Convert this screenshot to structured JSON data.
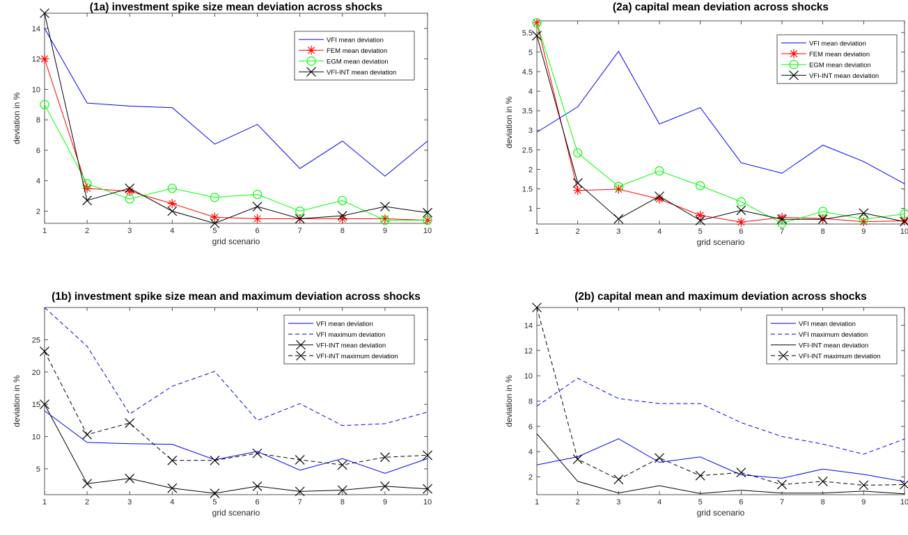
{
  "chart_data": [
    {
      "id": "1a",
      "type": "line",
      "title": "(1a) investment spike size mean deviation across shocks",
      "xlabel": "grid scenario",
      "ylabel": "deviation in %",
      "x": [
        1,
        2,
        3,
        4,
        5,
        6,
        7,
        8,
        9,
        10
      ],
      "xlim": [
        1,
        10
      ],
      "ylim": [
        1.2,
        15
      ],
      "yticks": [
        2,
        4,
        6,
        8,
        10,
        12,
        14
      ],
      "xticks": [
        1,
        2,
        3,
        4,
        5,
        6,
        7,
        8,
        9,
        10
      ],
      "legend_position": "top-right",
      "grid": false,
      "series": [
        {
          "name": "VFI mean deviation",
          "color": "#0000ff",
          "dash": "solid",
          "marker": "none",
          "values": [
            14.0,
            9.1,
            8.9,
            8.8,
            6.4,
            7.7,
            4.8,
            6.6,
            4.3,
            6.6
          ]
        },
        {
          "name": "FEM mean deviation",
          "color": "#ff0000",
          "dash": "solid",
          "marker": "star",
          "values": [
            12.0,
            3.5,
            3.3,
            2.5,
            1.6,
            1.5,
            1.5,
            1.5,
            1.5,
            1.4
          ]
        },
        {
          "name": "EGM mean deviation",
          "color": "#00ff00",
          "dash": "solid",
          "marker": "circle",
          "values": [
            9.0,
            3.8,
            2.8,
            3.5,
            2.9,
            3.1,
            2.0,
            2.7,
            1.4,
            1.4
          ]
        },
        {
          "name": "VFI-INT mean deviation",
          "color": "#000000",
          "dash": "solid",
          "marker": "x",
          "values": [
            15.0,
            2.7,
            3.5,
            2.0,
            1.2,
            2.3,
            1.5,
            1.7,
            2.3,
            1.9
          ]
        }
      ]
    },
    {
      "id": "2a",
      "type": "line",
      "title": "(2a) capital mean deviation across shocks",
      "xlabel": "grid scenario",
      "ylabel": "deviation in %",
      "x": [
        1,
        2,
        3,
        4,
        5,
        6,
        7,
        8,
        9,
        10
      ],
      "xlim": [
        1,
        10
      ],
      "ylim": [
        0.6,
        5.8
      ],
      "yticks": [
        1,
        1.5,
        2,
        2.5,
        3,
        3.5,
        4,
        4.5,
        5,
        5.5
      ],
      "xticks": [
        1,
        2,
        3,
        4,
        5,
        6,
        7,
        8,
        9,
        10
      ],
      "legend_position": "top-right",
      "grid": false,
      "series": [
        {
          "name": "VFI mean deviation",
          "color": "#0000ff",
          "dash": "solid",
          "marker": "none",
          "values": [
            2.95,
            3.6,
            5.02,
            3.16,
            3.58,
            2.17,
            1.9,
            2.62,
            2.2,
            1.63
          ]
        },
        {
          "name": "FEM mean deviation",
          "color": "#ff0000",
          "dash": "solid",
          "marker": "star",
          "values": [
            5.75,
            1.46,
            1.49,
            1.24,
            0.82,
            0.65,
            0.77,
            0.74,
            0.66,
            0.68
          ]
        },
        {
          "name": "EGM mean deviation",
          "color": "#00ff00",
          "dash": "solid",
          "marker": "circle",
          "values": [
            5.75,
            2.42,
            1.56,
            1.96,
            1.58,
            1.17,
            0.62,
            0.92,
            0.72,
            0.86
          ]
        },
        {
          "name": "VFI-INT mean deviation",
          "color": "#000000",
          "dash": "solid",
          "marker": "x",
          "values": [
            5.42,
            1.65,
            0.73,
            1.31,
            0.69,
            0.95,
            0.72,
            0.72,
            0.88,
            0.66
          ]
        }
      ]
    },
    {
      "id": "1b",
      "type": "line",
      "title": "(1b) investment spike size mean and maximum deviation across shocks",
      "xlabel": "grid scenario",
      "ylabel": "deviation in %",
      "x": [
        1,
        2,
        3,
        4,
        5,
        6,
        7,
        8,
        9,
        10
      ],
      "xlim": [
        1,
        10
      ],
      "ylim": [
        1,
        30
      ],
      "yticks": [
        5,
        10,
        15,
        20,
        25
      ],
      "xticks": [
        1,
        2,
        3,
        4,
        5,
        6,
        7,
        8,
        9,
        10
      ],
      "legend_position": "top-right",
      "grid": false,
      "series": [
        {
          "name": "VFI mean deviation",
          "color": "#0000ff",
          "dash": "solid",
          "marker": "none",
          "values": [
            14.0,
            9.1,
            8.9,
            8.8,
            6.4,
            7.7,
            4.8,
            6.6,
            4.3,
            6.6
          ]
        },
        {
          "name": "VFI maximum deviation",
          "color": "#0000ff",
          "dash": "dashed",
          "marker": "none",
          "values": [
            30.0,
            24.0,
            13.5,
            17.8,
            20.1,
            12.5,
            15.1,
            11.7,
            12.0,
            13.8
          ]
        },
        {
          "name": "VFI-INT mean deviation",
          "color": "#000000",
          "dash": "solid",
          "marker": "x",
          "values": [
            15.0,
            2.7,
            3.5,
            2.0,
            1.2,
            2.3,
            1.5,
            1.7,
            2.3,
            1.9
          ]
        },
        {
          "name": "VFI-INT maximum deviation",
          "color": "#000000",
          "dash": "dashed",
          "marker": "x",
          "values": [
            23.2,
            10.3,
            12.1,
            6.3,
            6.3,
            7.4,
            6.4,
            5.6,
            6.8,
            7.1
          ]
        }
      ]
    },
    {
      "id": "2b",
      "type": "line",
      "title": "(2b) capital mean and maximum deviation across shocks",
      "xlabel": "grid scenario",
      "ylabel": "deviation in %",
      "x": [
        1,
        2,
        3,
        4,
        5,
        6,
        7,
        8,
        9,
        10
      ],
      "xlim": [
        1,
        10
      ],
      "ylim": [
        0.6,
        15.4
      ],
      "yticks": [
        2,
        4,
        6,
        8,
        10,
        12,
        14
      ],
      "xticks": [
        1,
        2,
        3,
        4,
        5,
        6,
        7,
        8,
        9,
        10
      ],
      "legend_position": "top-right",
      "grid": false,
      "series": [
        {
          "name": "VFI mean deviation",
          "color": "#0000ff",
          "dash": "solid",
          "marker": "none",
          "values": [
            2.95,
            3.6,
            5.02,
            3.16,
            3.58,
            2.17,
            1.9,
            2.62,
            2.2,
            1.63
          ]
        },
        {
          "name": "VFI maximum deviation",
          "color": "#0000ff",
          "dash": "dashed",
          "marker": "none",
          "values": [
            7.6,
            9.8,
            8.2,
            7.8,
            7.8,
            6.3,
            5.2,
            4.6,
            3.8,
            5.0
          ]
        },
        {
          "name": "VFI-INT mean deviation",
          "color": "#000000",
          "dash": "solid",
          "marker": "none",
          "values": [
            5.42,
            1.65,
            0.73,
            1.31,
            0.69,
            0.95,
            0.72,
            0.72,
            0.88,
            0.66
          ]
        },
        {
          "name": "VFI-INT maximum deviation",
          "color": "#000000",
          "dash": "dashed",
          "marker": "x",
          "values": [
            15.4,
            3.4,
            1.8,
            3.5,
            2.1,
            2.35,
            1.4,
            1.65,
            1.35,
            1.4
          ]
        }
      ]
    }
  ]
}
